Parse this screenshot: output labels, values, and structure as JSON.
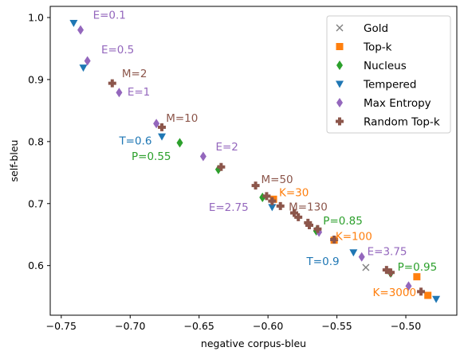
{
  "chart_data": {
    "type": "scatter",
    "title": "",
    "xlabel": "negative corpus-bleu",
    "ylabel": "self-bleu",
    "xlim": [
      -0.758,
      -0.463
    ],
    "ylim": [
      0.52,
      1.018
    ],
    "xticks": [
      -0.75,
      -0.7,
      -0.65,
      -0.6,
      -0.55,
      -0.5
    ],
    "xtick_labels": [
      "−0.75",
      "−0.70",
      "−0.65",
      "−0.60",
      "−0.55",
      "−0.50"
    ],
    "yticks": [
      0.6,
      0.7,
      0.8,
      0.9,
      1.0
    ],
    "ytick_labels": [
      "0.6",
      "0.7",
      "0.8",
      "0.9",
      "1.0"
    ],
    "grid": false,
    "legend_position": "top-right",
    "series": [
      {
        "name": "Gold",
        "marker": "x",
        "color": "#7f7f7f",
        "points": [
          [
            -0.529,
            0.597
          ]
        ]
      },
      {
        "name": "Top-k",
        "marker": "square",
        "color": "#ff7f0e",
        "points": [
          [
            -0.596,
            0.707
          ],
          [
            -0.552,
            0.641
          ],
          [
            -0.492,
            0.582
          ],
          [
            -0.484,
            0.552
          ]
        ]
      },
      {
        "name": "Nucleus",
        "marker": "diamond",
        "color": "#2ca02c",
        "points": [
          [
            -0.664,
            0.798
          ],
          [
            -0.636,
            0.755
          ],
          [
            -0.604,
            0.71
          ],
          [
            -0.565,
            0.656
          ],
          [
            -0.511,
            0.588
          ]
        ]
      },
      {
        "name": "Tempered",
        "marker": "triangle-down",
        "color": "#1f77b4",
        "points": [
          [
            -0.741,
            0.991
          ],
          [
            -0.734,
            0.919
          ],
          [
            -0.677,
            0.808
          ],
          [
            -0.597,
            0.694
          ],
          [
            -0.538,
            0.621
          ],
          [
            -0.478,
            0.546
          ]
        ]
      },
      {
        "name": "Max Entropy",
        "marker": "diamond",
        "color": "#9467bd",
        "points": [
          [
            -0.736,
            0.98
          ],
          [
            -0.731,
            0.93
          ],
          [
            -0.708,
            0.879
          ],
          [
            -0.681,
            0.829
          ],
          [
            -0.647,
            0.776
          ],
          [
            -0.563,
            0.654
          ],
          [
            -0.532,
            0.614
          ],
          [
            -0.498,
            0.567
          ]
        ]
      },
      {
        "name": "Random Top-k",
        "marker": "plus",
        "color": "#8c564b",
        "points": [
          [
            -0.713,
            0.894
          ],
          [
            -0.677,
            0.823
          ],
          [
            -0.634,
            0.759
          ],
          [
            -0.609,
            0.729
          ],
          [
            -0.601,
            0.712
          ],
          [
            -0.597,
            0.704
          ],
          [
            -0.591,
            0.696
          ],
          [
            -0.581,
            0.685
          ],
          [
            -0.578,
            0.678
          ],
          [
            -0.571,
            0.669
          ],
          [
            -0.57,
            0.665
          ],
          [
            -0.564,
            0.659
          ],
          [
            -0.552,
            0.642
          ],
          [
            -0.514,
            0.593
          ],
          [
            -0.511,
            0.589
          ],
          [
            -0.489,
            0.558
          ]
        ]
      }
    ],
    "annotations": [
      {
        "text": "E=0.1",
        "x": -0.727,
        "y": 0.998,
        "color": "#9467bd"
      },
      {
        "text": "E=0.5",
        "x": -0.721,
        "y": 0.942,
        "color": "#9467bd"
      },
      {
        "text": "M=2",
        "x": -0.706,
        "y": 0.904,
        "color": "#8c564b"
      },
      {
        "text": "E=1",
        "x": -0.702,
        "y": 0.874,
        "color": "#9467bd"
      },
      {
        "text": "M=10",
        "x": -0.674,
        "y": 0.832,
        "color": "#8c564b"
      },
      {
        "text": "T=0.6",
        "x": -0.708,
        "y": 0.795,
        "color": "#1f77b4"
      },
      {
        "text": "P=0.55",
        "x": -0.699,
        "y": 0.77,
        "color": "#2ca02c"
      },
      {
        "text": "E=2",
        "x": -0.638,
        "y": 0.786,
        "color": "#9467bd"
      },
      {
        "text": "M=50",
        "x": -0.605,
        "y": 0.733,
        "color": "#8c564b"
      },
      {
        "text": "K=30",
        "x": -0.592,
        "y": 0.712,
        "color": "#ff7f0e"
      },
      {
        "text": "E=2.75",
        "x": -0.643,
        "y": 0.688,
        "color": "#9467bd"
      },
      {
        "text": "M=130",
        "x": -0.585,
        "y": 0.689,
        "color": "#8c564b"
      },
      {
        "text": "P=0.85",
        "x": -0.56,
        "y": 0.666,
        "color": "#2ca02c"
      },
      {
        "text": "K=100",
        "x": -0.551,
        "y": 0.641,
        "color": "#ff7f0e"
      },
      {
        "text": "E=3.75",
        "x": -0.528,
        "y": 0.617,
        "color": "#9467bd"
      },
      {
        "text": "T=0.9",
        "x": -0.572,
        "y": 0.601,
        "color": "#1f77b4"
      },
      {
        "text": "P=0.95",
        "x": -0.506,
        "y": 0.592,
        "color": "#2ca02c"
      },
      {
        "text": "K=3000",
        "x": -0.524,
        "y": 0.551,
        "color": "#ff7f0e"
      }
    ]
  }
}
